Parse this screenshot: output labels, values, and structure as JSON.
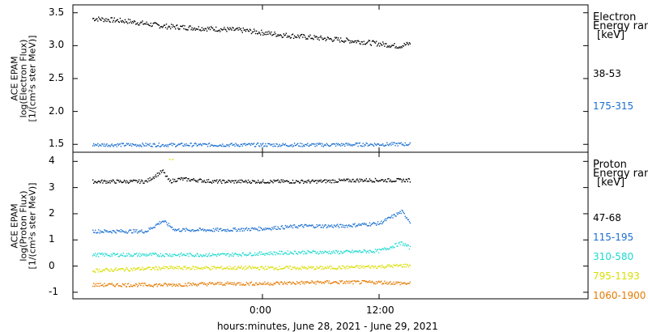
{
  "chart_data": [
    {
      "type": "scatter",
      "panel": "electron",
      "ylabel_lines": [
        "ACE EPAM",
        "log(Electron Flux)",
        "[1/(cm²s ster MeV)]"
      ],
      "ylim": [
        1.38,
        3.62
      ],
      "yticks": [
        1.5,
        2.0,
        2.5,
        3.0,
        3.5
      ],
      "yticklabels": [
        "1.5",
        "2.0",
        "2.5",
        "3.0",
        "3.5"
      ],
      "legend_title": [
        "Electron",
        "Energy ranges",
        "[keV]"
      ],
      "series": [
        {
          "name": "38-53",
          "color": "#000000",
          "x": [
            -17.5,
            -14,
            -10,
            -6,
            -2,
            2,
            6,
            10,
            14,
            15.2
          ],
          "y": [
            3.42,
            3.38,
            3.3,
            3.27,
            3.24,
            3.17,
            3.12,
            3.07,
            3.0,
            3.04
          ]
        },
        {
          "name": "175-315",
          "color": "#1a6fd1",
          "x": [
            -17.5,
            -10,
            -2,
            6,
            14,
            15.2
          ],
          "y": [
            1.5,
            1.5,
            1.5,
            1.5,
            1.51,
            1.51
          ]
        }
      ]
    },
    {
      "type": "scatter",
      "panel": "proton",
      "ylabel_lines": [
        "ACE EPAM",
        "log(Proton Flux)",
        "[1/(cm²s ster MeV)]"
      ],
      "ylim": [
        -1.25,
        4.35
      ],
      "yticks": [
        -1,
        0,
        1,
        2,
        3,
        4
      ],
      "yticklabels": [
        "-1",
        "0",
        "1",
        "2",
        "3",
        "4"
      ],
      "legend_title": [
        "Proton",
        "Energy ranges",
        "[keV]"
      ],
      "series": [
        {
          "name": "47-68",
          "color": "#000000",
          "x": [
            -17.5,
            -12,
            -10.3,
            -9.6,
            -8.5,
            -5,
            0,
            5,
            10,
            15.2
          ],
          "y": [
            3.25,
            3.25,
            3.65,
            3.25,
            3.35,
            3.25,
            3.25,
            3.25,
            3.3,
            3.3
          ]
        },
        {
          "name": "115-195",
          "color": "#1a6fd1",
          "x": [
            -17.5,
            -12,
            -10.3,
            -9,
            -4,
            0,
            4,
            8,
            12,
            14.3,
            15.2
          ],
          "y": [
            1.35,
            1.35,
            1.75,
            1.4,
            1.4,
            1.45,
            1.55,
            1.55,
            1.65,
            2.1,
            1.7
          ]
        },
        {
          "name": "310-580",
          "color": "#1fd9d0",
          "x": [
            -17.5,
            -10,
            -4,
            0,
            4,
            8,
            12,
            14.3,
            15.2
          ],
          "y": [
            0.45,
            0.45,
            0.45,
            0.5,
            0.55,
            0.55,
            0.6,
            0.9,
            0.7
          ]
        },
        {
          "name": "795-1193",
          "color": "#d9de00",
          "x": [
            -17.5,
            -10,
            -4,
            0,
            6,
            12,
            15.2,
            -9.6,
            -9.3
          ],
          "y": [
            -0.15,
            -0.05,
            -0.05,
            -0.05,
            -0.05,
            0.0,
            0.05,
            4.1,
            4.1
          ]
        },
        {
          "name": "1060-1900",
          "color": "#e57a00",
          "x": [
            -17.5,
            -10,
            -4,
            0,
            6,
            12,
            15.2
          ],
          "y": [
            -0.7,
            -0.7,
            -0.65,
            -0.65,
            -0.6,
            -0.6,
            -0.65
          ]
        }
      ]
    }
  ],
  "x_axis": {
    "xlim": [
      -19.5,
      33.5
    ],
    "ticks": [
      0,
      12
    ],
    "ticklabels": [
      "0:00",
      "12:00"
    ],
    "xlabel": "hours:minutes, June 28, 2021 - June 29, 2021"
  }
}
